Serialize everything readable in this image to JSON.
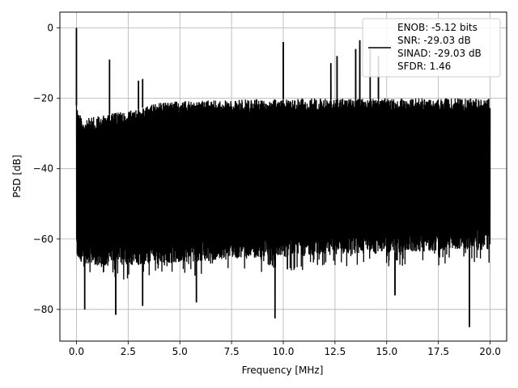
{
  "chart_data": {
    "type": "line",
    "title": "",
    "xlabel": "Frequency [MHz]",
    "ylabel": "PSD [dB]",
    "xlim": [
      -0.8,
      20.8
    ],
    "ylim": [
      -89,
      4.5
    ],
    "x_ticks": [
      0.0,
      2.5,
      5.0,
      7.5,
      10.0,
      12.5,
      15.0,
      17.5,
      20.0
    ],
    "x_tick_labels": [
      "0.0",
      "2.5",
      "5.0",
      "7.5",
      "10.0",
      "12.5",
      "15.0",
      "17.5",
      "20.0"
    ],
    "y_ticks": [
      0,
      -20,
      -40,
      -60,
      -80
    ],
    "y_tick_labels": [
      "0",
      "−20",
      "−40",
      "−60",
      "−80"
    ],
    "grid": true,
    "series_color": "#000000",
    "legend": {
      "placement": "top-right",
      "entries": [
        "ENOB: -5.12 bits",
        "SNR: -29.03 dB",
        "SINAD: -29.03 dB",
        "SFDR: 1.46"
      ]
    },
    "series": [
      {
        "x_range": [
          0.0,
          20.0
        ],
        "noise_band_top": [
          [
            0.0,
            -22
          ],
          [
            0.3,
            -26
          ],
          [
            1.0,
            -25
          ],
          [
            2.0,
            -24
          ],
          [
            3.0,
            -23
          ],
          [
            4.0,
            -21
          ],
          [
            10.0,
            -20
          ],
          [
            20.0,
            -20
          ]
        ],
        "noise_band_bottom": [
          [
            0.0,
            -66
          ],
          [
            1.0,
            -68
          ],
          [
            10.0,
            -65
          ],
          [
            20.0,
            -63
          ]
        ],
        "spurs": [
          {
            "x": 0.0,
            "y": 0
          },
          {
            "x": 1.6,
            "y": -9
          },
          {
            "x": 3.0,
            "y": -15
          },
          {
            "x": 3.2,
            "y": -14.5
          },
          {
            "x": 10.0,
            "y": -4
          },
          {
            "x": 12.3,
            "y": -10
          },
          {
            "x": 12.6,
            "y": -8
          },
          {
            "x": 13.5,
            "y": -6
          },
          {
            "x": 13.7,
            "y": -3.5
          },
          {
            "x": 14.2,
            "y": -6
          },
          {
            "x": 14.6,
            "y": -8
          }
        ],
        "dips": [
          {
            "x": 0.4,
            "y": -80
          },
          {
            "x": 1.9,
            "y": -81.5
          },
          {
            "x": 3.2,
            "y": -79
          },
          {
            "x": 5.8,
            "y": -78
          },
          {
            "x": 9.6,
            "y": -82.5
          },
          {
            "x": 15.4,
            "y": -76
          },
          {
            "x": 19.0,
            "y": -85
          }
        ]
      }
    ]
  }
}
